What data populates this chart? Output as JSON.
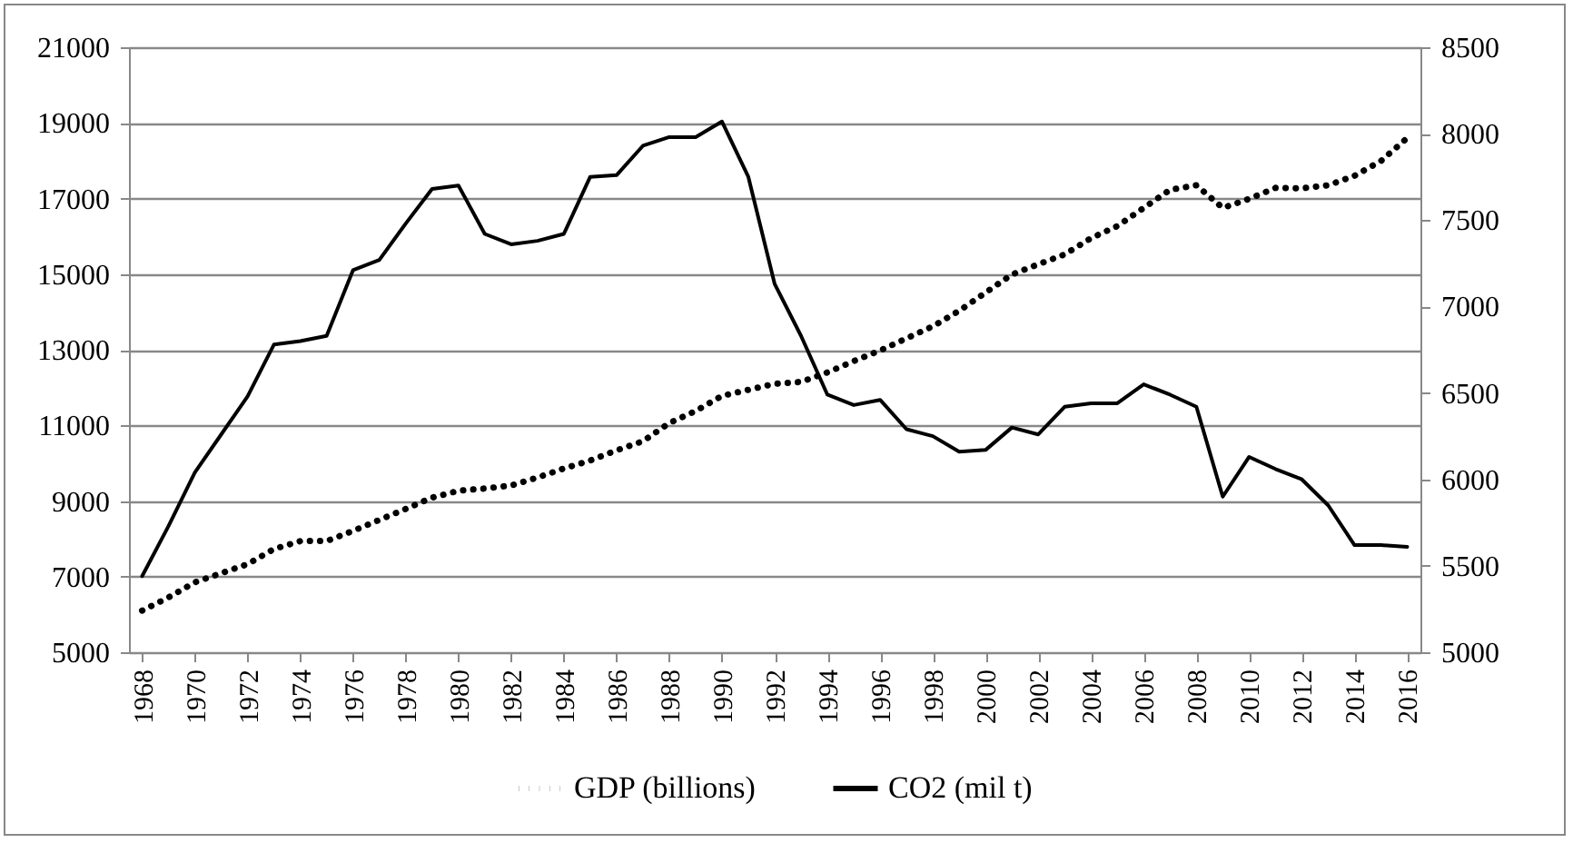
{
  "chart_data": {
    "type": "line",
    "x": [
      1968,
      1969,
      1970,
      1971,
      1972,
      1973,
      1974,
      1975,
      1976,
      1977,
      1978,
      1979,
      1980,
      1981,
      1982,
      1983,
      1984,
      1985,
      1986,
      1987,
      1988,
      1989,
      1990,
      1991,
      1992,
      1993,
      1994,
      1995,
      1996,
      1997,
      1998,
      1999,
      2000,
      2001,
      2002,
      2003,
      2004,
      2005,
      2006,
      2007,
      2008,
      2009,
      2010,
      2011,
      2012,
      2013,
      2014,
      2015,
      2016
    ],
    "series": [
      {
        "name": "GDP (billions)",
        "color": "#000000",
        "line_style": "dotted",
        "values": [
          6100,
          6450,
          6850,
          7090,
          7330,
          7730,
          7940,
          7940,
          8210,
          8500,
          8790,
          9090,
          9270,
          9330,
          9410,
          9620,
          9860,
          10070,
          10340,
          10580,
          11060,
          11380,
          11780,
          11940,
          12100,
          12150,
          12400,
          12700,
          12980,
          13300,
          13620,
          14030,
          14510,
          14990,
          15260,
          15520,
          15950,
          16270,
          16750,
          17230,
          17350,
          16750,
          16990,
          17280,
          17270,
          17350,
          17600,
          17990,
          18600
        ]
      },
      {
        "name": "CO2 (mil t)",
        "color": "#000000",
        "line_style": "solid",
        "axis": "y2",
        "values": [
          5440,
          5730,
          6040,
          6260,
          6480,
          6780,
          6800,
          6830,
          7210,
          7270,
          7480,
          7680,
          7700,
          7420,
          7360,
          7380,
          7420,
          7750,
          7760,
          7930,
          7980,
          7980,
          8070,
          7750,
          7130,
          6830,
          6490,
          6430,
          6460,
          6290,
          6250,
          6160,
          6170,
          6300,
          6260,
          6420,
          6440,
          6440,
          6550,
          6490,
          6420,
          5900,
          6130,
          6060,
          6000,
          5850,
          5620,
          5620,
          5610
        ]
      }
    ],
    "xlim": [
      1967.5,
      2016.5
    ],
    "xticks": [
      1968,
      1970,
      1972,
      1974,
      1976,
      1978,
      1980,
      1982,
      1984,
      1986,
      1988,
      1990,
      1992,
      1994,
      1996,
      1998,
      2000,
      2002,
      2004,
      2006,
      2008,
      2010,
      2012,
      2014,
      2016
    ],
    "ylim": [
      5000,
      21000
    ],
    "yticks": [
      5000,
      7000,
      9000,
      11000,
      13000,
      15000,
      17000,
      19000,
      21000
    ],
    "y2lim": [
      5000,
      8500
    ],
    "y2ticks": [
      5000,
      5500,
      6000,
      6500,
      7000,
      7500,
      8000,
      8500
    ],
    "grid": "y",
    "legend": "bottom",
    "marker": "none"
  }
}
